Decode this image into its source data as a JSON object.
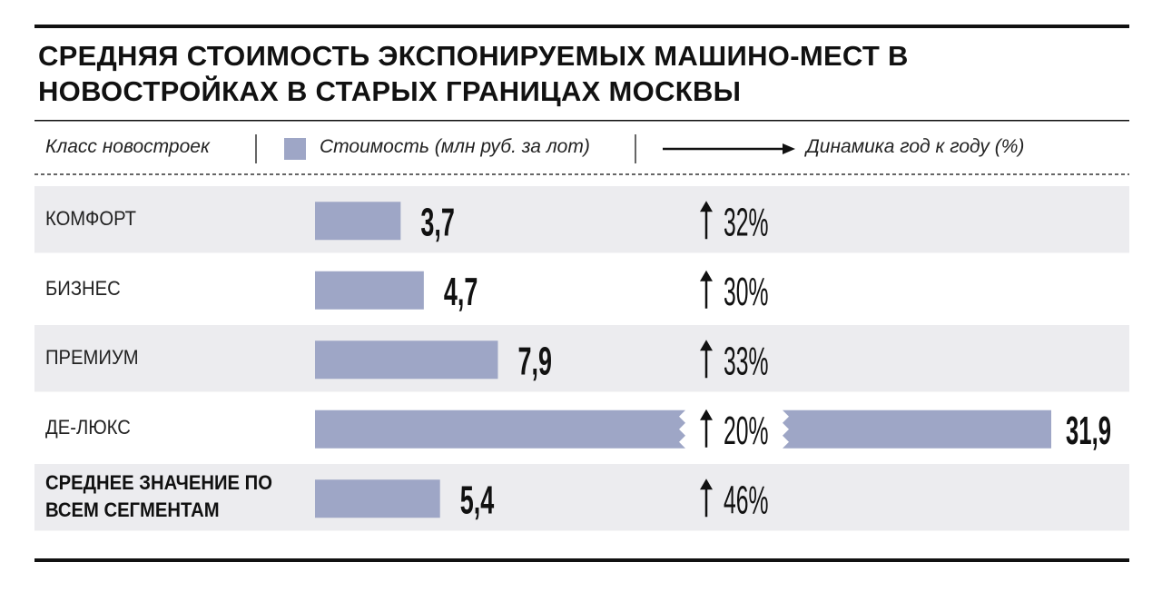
{
  "chart_data": {
    "type": "bar",
    "title": "СРЕДНЯЯ СТОИМОСТЬ ЭКСПОНИРУЕМЫХ МАШИНО-МЕСТ В НОВОСТРОЙКАХ В СТАРЫХ ГРАНИЦАХ МОСКВЫ",
    "category_label": "Класс новостроек",
    "categories": [
      "КОМФОРТ",
      "БИЗНЕС",
      "ПРЕМИУМ",
      "ДЕ-ЛЮКС",
      "СРЕДНЕЕ ЗНАЧЕНИЕ ПО ВСЕМ СЕГМЕНТАМ"
    ],
    "highlight_last": true,
    "series": [
      {
        "name": "Стоимость (млн руб. за лот)",
        "color": "#9ea6c6",
        "values": [
          3.7,
          4.7,
          7.9,
          31.9,
          5.4
        ],
        "value_labels": [
          "3,7",
          "4,7",
          "7,9",
          "31,9",
          "5,4"
        ]
      },
      {
        "name": "Динамика год к году (%)",
        "color": "#111111",
        "values": [
          32,
          30,
          33,
          20,
          46
        ],
        "value_labels": [
          "32%",
          "30%",
          "33%",
          "20%",
          "46%"
        ]
      }
    ]
  }
}
